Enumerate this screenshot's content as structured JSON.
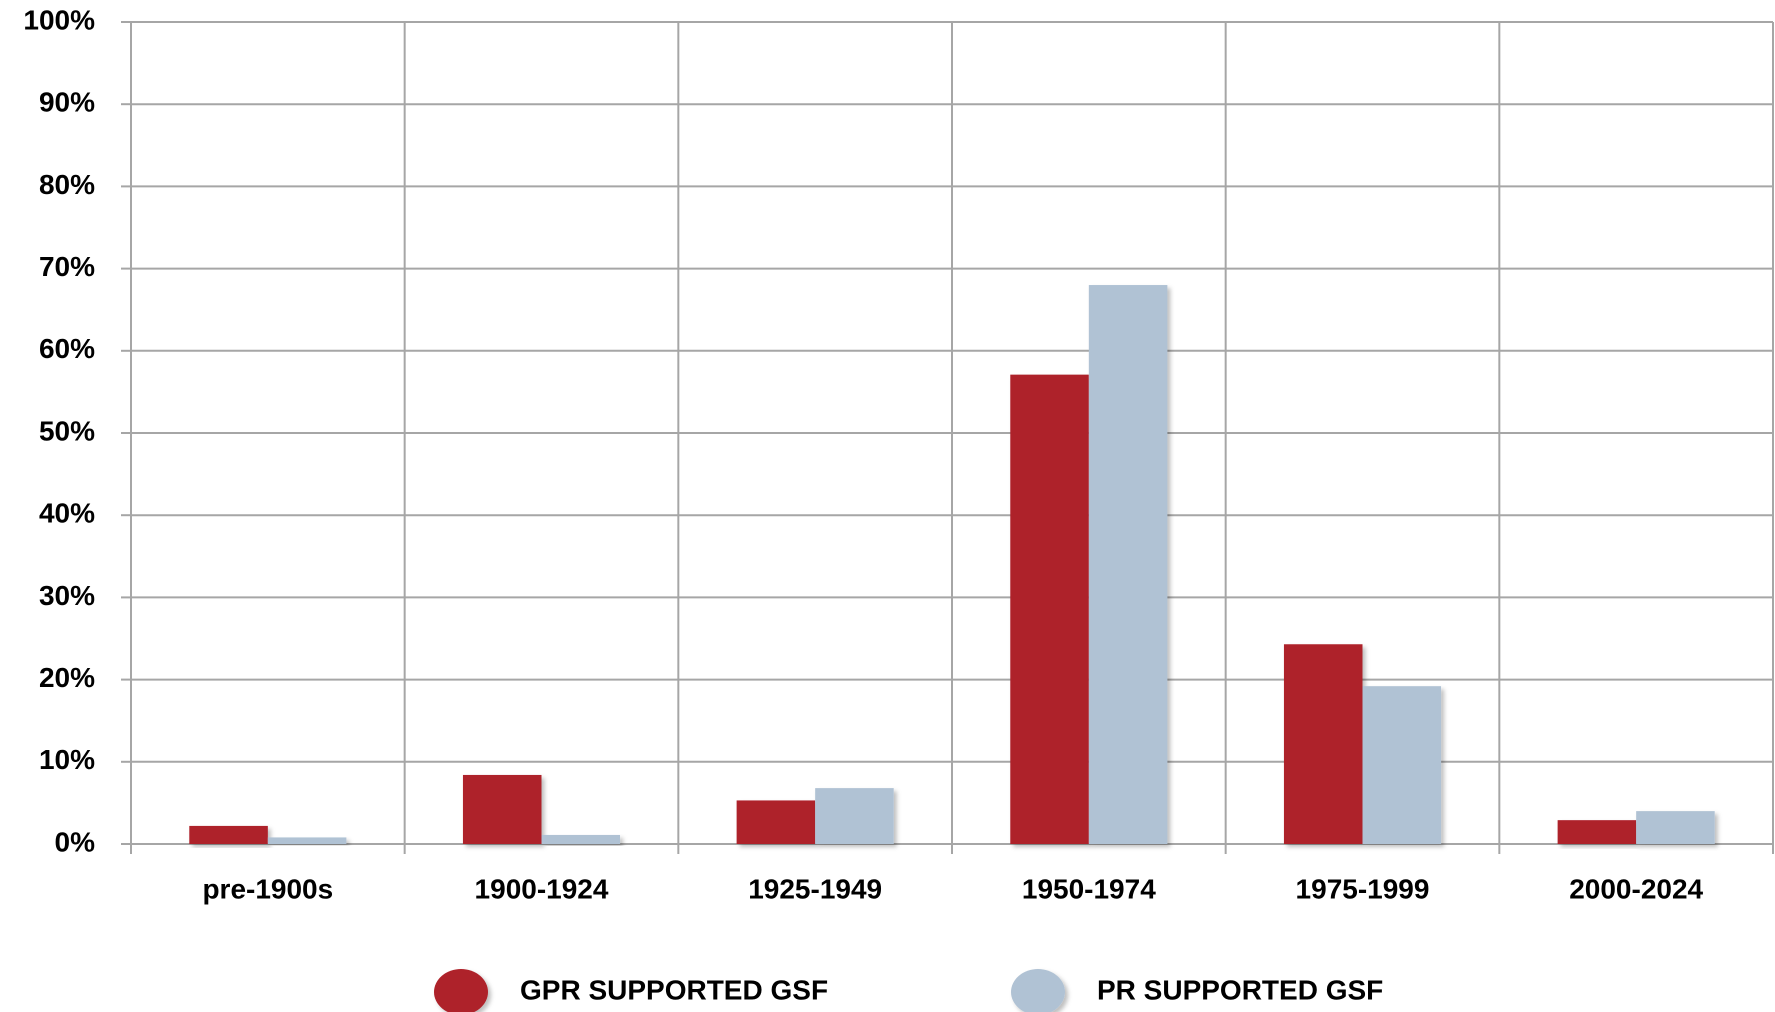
{
  "chart_data": {
    "type": "bar",
    "categories": [
      "pre-1900s",
      "1900-1924",
      "1925-1949",
      "1950-1974",
      "1975-1999",
      "2000-2024"
    ],
    "series": [
      {
        "name": "GPR SUPPORTED GSF",
        "color": "#ae2029",
        "values": [
          2.2,
          8.4,
          5.3,
          57.1,
          24.3,
          2.9
        ]
      },
      {
        "name": "PR SUPPORTED GSF",
        "color": "#b0c2d4",
        "values": [
          0.8,
          1.1,
          6.8,
          68.0,
          19.2,
          4.0
        ]
      }
    ],
    "ylim": [
      0,
      100
    ],
    "yticks": [
      {
        "value": 0,
        "label": "0%"
      },
      {
        "value": 10,
        "label": "10%"
      },
      {
        "value": 20,
        "label": "20%"
      },
      {
        "value": 30,
        "label": "30%"
      },
      {
        "value": 40,
        "label": "40%"
      },
      {
        "value": 50,
        "label": "50%"
      },
      {
        "value": 60,
        "label": "60%"
      },
      {
        "value": 70,
        "label": "70%"
      },
      {
        "value": 80,
        "label": "80%"
      },
      {
        "value": 90,
        "label": "90%"
      },
      {
        "value": 100,
        "label": "100%"
      }
    ],
    "grid": true,
    "legend": "bottom"
  }
}
